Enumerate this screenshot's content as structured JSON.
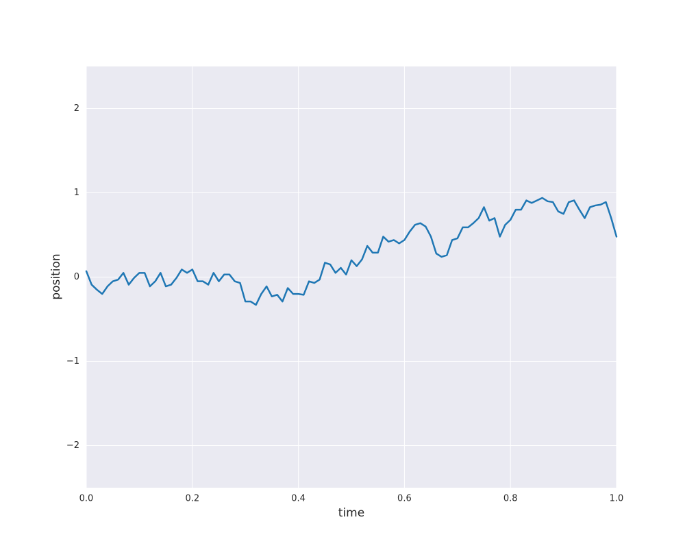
{
  "chart_data": {
    "type": "line",
    "x_label": "time",
    "y_label": "position",
    "x": [
      0,
      0.01,
      0.02,
      0.03,
      0.04,
      0.05,
      0.06,
      0.07,
      0.08,
      0.09,
      0.1,
      0.11,
      0.12,
      0.13,
      0.14,
      0.15,
      0.16,
      0.17,
      0.18,
      0.19,
      0.2,
      0.21,
      0.22,
      0.23,
      0.24,
      0.25,
      0.26,
      0.27,
      0.28,
      0.29,
      0.3,
      0.31,
      0.32,
      0.33,
      0.34,
      0.35,
      0.36,
      0.37,
      0.38,
      0.39,
      0.4,
      0.41,
      0.42,
      0.43,
      0.44,
      0.45,
      0.46,
      0.47,
      0.48,
      0.49,
      0.5,
      0.51,
      0.52,
      0.53,
      0.54,
      0.55,
      0.56,
      0.57,
      0.58,
      0.59,
      0.6,
      0.61,
      0.62,
      0.63,
      0.64,
      0.65,
      0.66,
      0.67,
      0.68,
      0.69,
      0.7,
      0.71,
      0.72,
      0.73,
      0.74,
      0.75,
      0.76,
      0.77,
      0.78,
      0.79,
      0.8,
      0.81,
      0.82,
      0.83,
      0.84,
      0.85,
      0.86,
      0.87,
      0.88,
      0.89,
      0.9,
      0.91,
      0.92,
      0.93,
      0.94,
      0.95,
      0.96,
      0.97,
      0.98,
      0.99,
      1
    ],
    "values": [
      0.07,
      -0.09,
      -0.15,
      -0.2,
      -0.11,
      -0.05,
      -0.03,
      0.05,
      -0.09,
      -0.01,
      0.05,
      0.05,
      -0.11,
      -0.05,
      0.05,
      -0.11,
      -0.09,
      -0.01,
      0.09,
      0.05,
      0.09,
      -0.05,
      -0.05,
      -0.09,
      0.05,
      -0.05,
      0.03,
      0.03,
      -0.05,
      -0.07,
      -0.29,
      -0.29,
      -0.33,
      -0.2,
      -0.11,
      -0.23,
      -0.21,
      -0.29,
      -0.13,
      -0.2,
      -0.2,
      -0.21,
      -0.05,
      -0.07,
      -0.03,
      0.17,
      0.15,
      0.05,
      0.11,
      0.03,
      0.2,
      0.13,
      0.21,
      0.37,
      0.29,
      0.29,
      0.48,
      0.42,
      0.44,
      0.4,
      0.44,
      0.54,
      0.62,
      0.64,
      0.6,
      0.48,
      0.28,
      0.24,
      0.26,
      0.44,
      0.46,
      0.59,
      0.59,
      0.64,
      0.7,
      0.83,
      0.67,
      0.7,
      0.48,
      0.62,
      0.68,
      0.8,
      0.8,
      0.91,
      0.88,
      0.91,
      0.94,
      0.9,
      0.89,
      0.78,
      0.75,
      0.89,
      0.91,
      0.8,
      0.7,
      0.83,
      0.85,
      0.86,
      0.89,
      0.7,
      0.48
    ],
    "color": "#1f77b4",
    "xlim": [
      0,
      1
    ],
    "xticks": [
      {
        "value": 0,
        "label": "0.0"
      },
      0.2,
      0.4,
      0.6,
      0.8,
      {
        "value": 1,
        "label": "1.0"
      }
    ],
    "ylim": [
      -2.5,
      2.5
    ],
    "yticks": [
      {
        "value": -2,
        "label": "−2"
      },
      {
        "value": -1,
        "label": "−1"
      },
      0,
      1,
      2
    ],
    "grid": true,
    "background": "#eaeaf2"
  }
}
